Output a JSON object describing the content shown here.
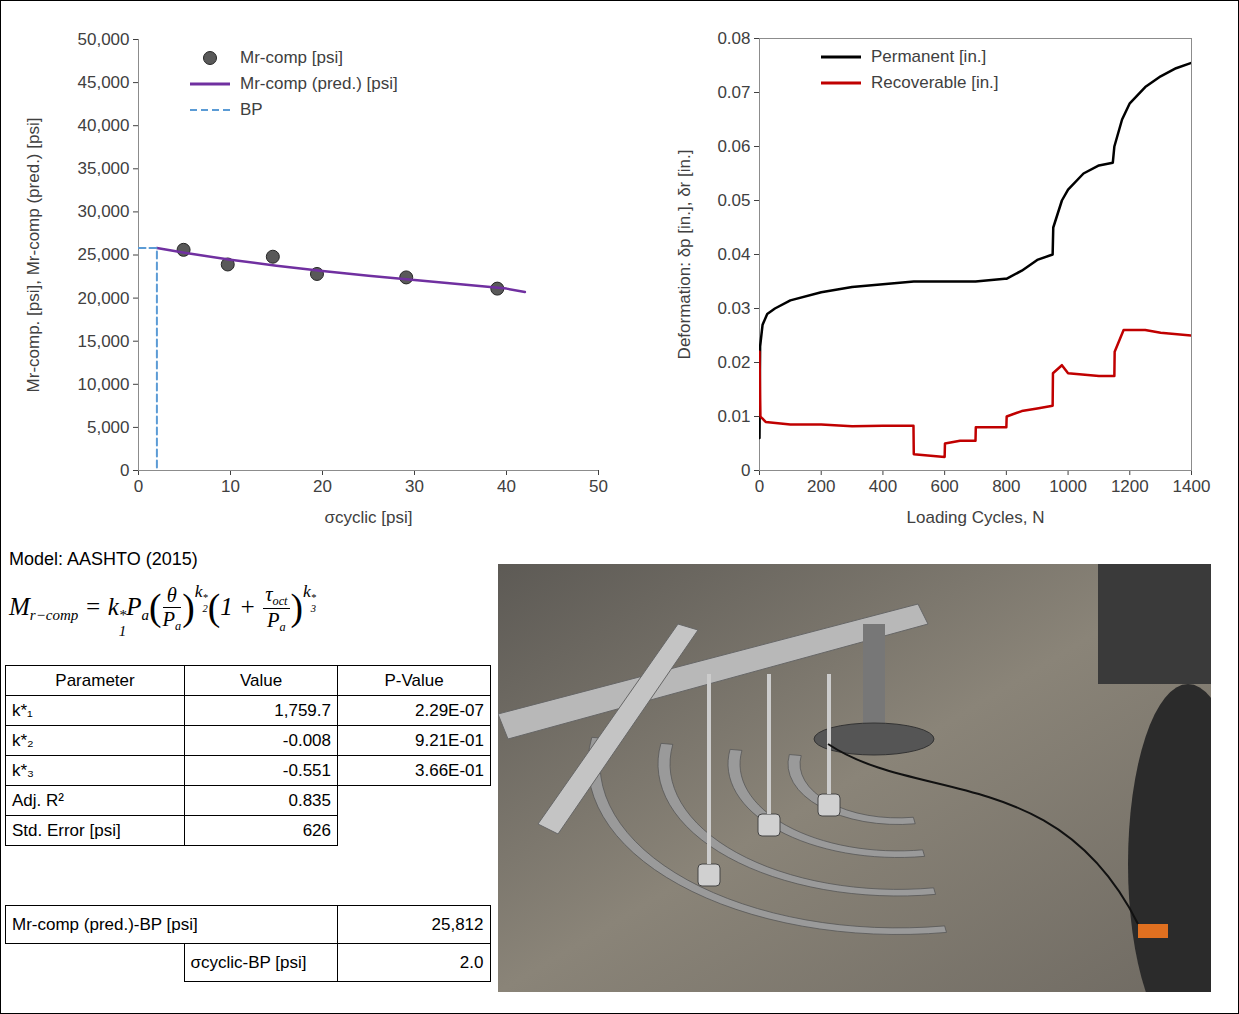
{
  "chart_data": [
    {
      "type": "scatter",
      "x_label": "σcyclic [psi]",
      "y_label": "Mr-comp. [psi], Mr-comp (pred.) [psi]",
      "xlim": [
        0,
        50
      ],
      "xticks": [
        0,
        10,
        20,
        30,
        40,
        50
      ],
      "ylim": [
        0,
        50000
      ],
      "yticks": [
        0,
        {
          "value": 5000,
          "label": "5,000"
        },
        {
          "value": 10000,
          "label": "10,000"
        },
        {
          "value": 15000,
          "label": "15,000"
        },
        {
          "value": 20000,
          "label": "20,000"
        },
        {
          "value": 25000,
          "label": "25,000"
        },
        {
          "value": 30000,
          "label": "30,000"
        },
        {
          "value": 35000,
          "label": "35,000"
        },
        {
          "value": 40000,
          "label": "40,000"
        },
        {
          "value": 45000,
          "label": "45,000"
        },
        {
          "value": 50000,
          "label": "50,000"
        }
      ],
      "grid": false,
      "legend": "top-left",
      "series": [
        {
          "name": "Mr-comp [psi]",
          "type": "scatter",
          "marker": "circle",
          "color": "#595959",
          "x": [
            4.9,
            9.7,
            14.6,
            19.4,
            29.1,
            39.0
          ],
          "values": [
            25600,
            23900,
            24800,
            22800,
            22400,
            21100
          ]
        },
        {
          "name": "Mr-comp (pred.) [psi]",
          "type": "line",
          "line_style": "solid",
          "color": "#7030a0",
          "x": [
            2,
            5,
            10,
            15,
            20,
            25,
            30,
            35,
            40,
            42
          ],
          "values": [
            25800,
            25250,
            24450,
            23750,
            23150,
            22600,
            22100,
            21600,
            21100,
            20700
          ]
        },
        {
          "name": "BP",
          "type": "line",
          "line_style": "dashed",
          "color": "#5b9bd5",
          "x": [
            0,
            2.0,
            2.0
          ],
          "values": [
            25812,
            25812,
            0
          ]
        }
      ]
    },
    {
      "type": "line",
      "x_label": "Loading Cycles, N",
      "y_label": "Deformation: δp [in.], δr [in.]",
      "xlim": [
        0,
        1400
      ],
      "xticks": [
        0,
        200,
        400,
        600,
        800,
        1000,
        1200,
        1400
      ],
      "ylim": [
        0,
        0.08
      ],
      "yticks": [
        0,
        0.01,
        0.02,
        0.03,
        0.04,
        0.05,
        0.06,
        0.07,
        0.08
      ],
      "grid": false,
      "legend": "top-left",
      "series": [
        {
          "name": "Permanent [in.]",
          "type": "line",
          "line_style": "solid",
          "color": "#000000",
          "x": [
            0,
            2,
            10,
            25,
            50,
            100,
            200,
            300,
            400,
            500,
            600,
            700,
            795,
            800,
            850,
            900,
            950,
            952,
            980,
            1000,
            1050,
            1100,
            1145,
            1150,
            1175,
            1200,
            1250,
            1300,
            1350,
            1400
          ],
          "values": [
            0.006,
            0.023,
            0.027,
            0.029,
            0.03,
            0.0315,
            0.033,
            0.034,
            0.0345,
            0.035,
            0.035,
            0.035,
            0.0355,
            0.0355,
            0.037,
            0.039,
            0.04,
            0.045,
            0.05,
            0.052,
            0.055,
            0.0565,
            0.057,
            0.06,
            0.065,
            0.068,
            0.071,
            0.073,
            0.0745,
            0.0755
          ]
        },
        {
          "name": "Recoverable [in.]",
          "type": "line",
          "line_style": "solid",
          "color": "#c00000",
          "x": [
            0,
            3,
            20,
            100,
            200,
            300,
            400,
            499,
            500,
            600,
            601,
            650,
            700,
            701,
            800,
            801,
            850,
            900,
            950,
            951,
            980,
            1000,
            1100,
            1150,
            1151,
            1180,
            1250,
            1300,
            1400
          ],
          "values": [
            0.022,
            0.01,
            0.009,
            0.0085,
            0.0085,
            0.0082,
            0.0083,
            0.0083,
            0.003,
            0.0025,
            0.005,
            0.0055,
            0.0055,
            0.008,
            0.008,
            0.01,
            0.011,
            0.0115,
            0.012,
            0.018,
            0.0195,
            0.018,
            0.0175,
            0.0175,
            0.022,
            0.026,
            0.026,
            0.0255,
            0.025
          ]
        }
      ]
    }
  ],
  "model": {
    "title": "Model: AASHTO (2015)",
    "equation": [
      {
        "b": "M",
        "sub": "r−comp"
      },
      {
        "b": " = "
      },
      {
        "b": "k",
        "sup": "*",
        "sub": "1"
      },
      {
        "b": "P",
        "sub": "a"
      },
      {
        "open": "(",
        "close": ")",
        "group": [
          {
            "frac": [
              [
                {
                  "b": "θ"
                }
              ],
              [
                {
                  "b": "P",
                  "sub": "a"
                }
              ]
            ]
          }
        ],
        "exp": [
          {
            "b": "k",
            "sup": "*",
            "sub": "2"
          }
        ]
      },
      {
        "open": "(",
        "close": ")",
        "group": [
          {
            "b": "1 + "
          },
          {
            "frac": [
              [
                {
                  "b": "τ",
                  "sub": "oct"
                }
              ],
              [
                {
                  "b": "P",
                  "sub": "a"
                }
              ]
            ]
          }
        ],
        "exp": [
          {
            "b": "k",
            "sup": "*",
            "sub": "3"
          }
        ]
      }
    ]
  },
  "table": {
    "header": [
      "Parameter",
      "Value",
      "P-Value"
    ],
    "rows": [
      [
        "k*₁",
        "1,759.7",
        "2.29E-07"
      ],
      [
        "k*₂",
        "-0.008",
        "9.21E-01"
      ],
      [
        "k*₃",
        "-0.551",
        "3.66E-01"
      ],
      [
        "Adj. R²",
        "0.835"
      ],
      [
        "Std. Error [psi]",
        "626"
      ]
    ]
  },
  "breakpoint_table": {
    "rows": [
      [
        "Mr-comp (pred.)-BP [psi]",
        "25,812"
      ],
      [
        "σcyclic-BP [psi]",
        "2.0"
      ]
    ]
  }
}
